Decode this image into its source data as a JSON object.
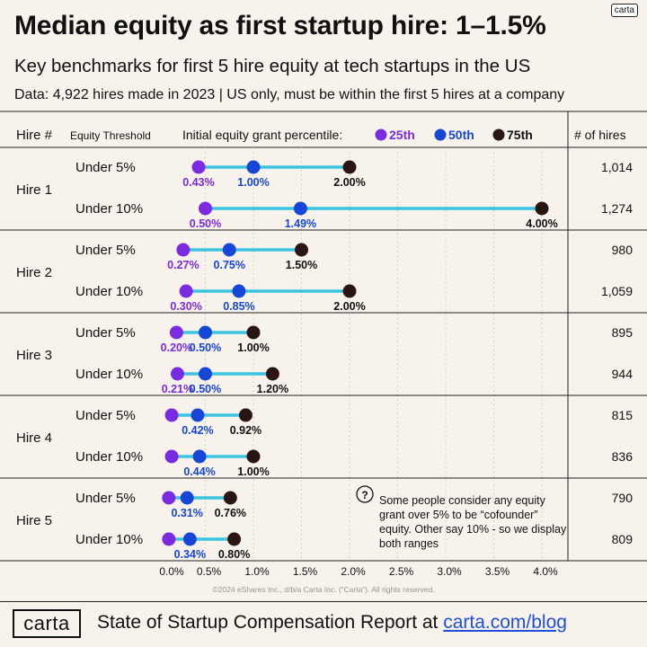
{
  "header": {
    "brand_tag": "carta",
    "title": "Median equity as first startup hire: 1–1.5%",
    "subtitle": "Key benchmarks for first 5 hire equity at tech startups in the US",
    "note": "Data: 4,922 hires made in 2023 | US only, must be within the first 5 hires at a company"
  },
  "columns": {
    "hire": "Hire #",
    "threshold": "Equity Threshold",
    "percentile_label": "Initial equity grant percentile:",
    "hires": "# of hires"
  },
  "colors": {
    "p25": "#7a2be0",
    "p50": "#1646d6",
    "p75": "#2a1515",
    "bar": "#3cc3de",
    "label25": "#7a2be0",
    "label50": "#1646d6",
    "label75": "#111111"
  },
  "chart_data": {
    "type": "dot-range",
    "series": [
      {
        "name": "25th"
      },
      {
        "name": "50th"
      },
      {
        "name": "75th"
      }
    ],
    "xlim": [
      0,
      4.0
    ],
    "x_ticks": [
      "0.0%",
      "0.5%",
      "1.0%",
      "1.5%",
      "2.0%",
      "2.5%",
      "3.0%",
      "3.5%",
      "4.0%"
    ],
    "groups": [
      {
        "hire": "Hire 1",
        "rows": [
          {
            "threshold": "Under 5%",
            "p25": 0.43,
            "p50": 1.0,
            "p75": 2.0,
            "l25": "0.43%",
            "l50": "1.00%",
            "l75": "2.00%",
            "hires": "1,014"
          },
          {
            "threshold": "Under 10%",
            "p25": 0.5,
            "p50": 1.49,
            "p75": 4.0,
            "l25": "0.50%",
            "l50": "1.49%",
            "l75": "4.00%",
            "hires": "1,274"
          }
        ]
      },
      {
        "hire": "Hire 2",
        "rows": [
          {
            "threshold": "Under 5%",
            "p25": 0.27,
            "p50": 0.75,
            "p75": 1.5,
            "l25": "0.27%",
            "l50": "0.75%",
            "l75": "1.50%",
            "hires": "980"
          },
          {
            "threshold": "Under 10%",
            "p25": 0.3,
            "p50": 0.85,
            "p75": 2.0,
            "l25": "0.30%",
            "l50": "0.85%",
            "l75": "2.00%",
            "hires": "1,059"
          }
        ]
      },
      {
        "hire": "Hire 3",
        "rows": [
          {
            "threshold": "Under 5%",
            "p25": 0.2,
            "p50": 0.5,
            "p75": 1.0,
            "l25": "0.20%",
            "l50": "0.50%",
            "l75": "1.00%",
            "hires": "895"
          },
          {
            "threshold": "Under 10%",
            "p25": 0.21,
            "p50": 0.5,
            "p75": 1.2,
            "l25": "0.21%",
            "l50": "0.50%",
            "l75": "1.20%",
            "hires": "944"
          }
        ]
      },
      {
        "hire": "Hire 4",
        "rows": [
          {
            "threshold": "Under 5%",
            "p25": 0.15,
            "p50": 0.42,
            "p75": 0.92,
            "l25": "",
            "l50": "0.42%",
            "l75": "0.92%",
            "hires": "815"
          },
          {
            "threshold": "Under 10%",
            "p25": 0.15,
            "p50": 0.44,
            "p75": 1.0,
            "l25": "",
            "l50": "0.44%",
            "l75": "1.00%",
            "hires": "836"
          }
        ]
      },
      {
        "hire": "Hire 5",
        "rows": [
          {
            "threshold": "Under 5%",
            "p25": 0.12,
            "p50": 0.31,
            "p75": 0.76,
            "l25": "",
            "l50": "0.31%",
            "l75": "0.76%",
            "hires": "790"
          },
          {
            "threshold": "Under 10%",
            "p25": 0.12,
            "p50": 0.34,
            "p75": 0.8,
            "l25": "",
            "l50": "0.34%",
            "l75": "0.80%",
            "hires": "809"
          }
        ]
      }
    ]
  },
  "callout": {
    "icon": "question-icon",
    "text": "Some people consider any equity grant over 5% to be “cofounder” equity. Other say 10% - so we display both ranges"
  },
  "copyright": "©2024 eShares Inc., d/b/a Carta Inc. (“Carta”). All rights reserved.",
  "footer": {
    "logo": "carta",
    "text": "State of Startup Compensation Report at ",
    "link": "carta.com/blog"
  }
}
